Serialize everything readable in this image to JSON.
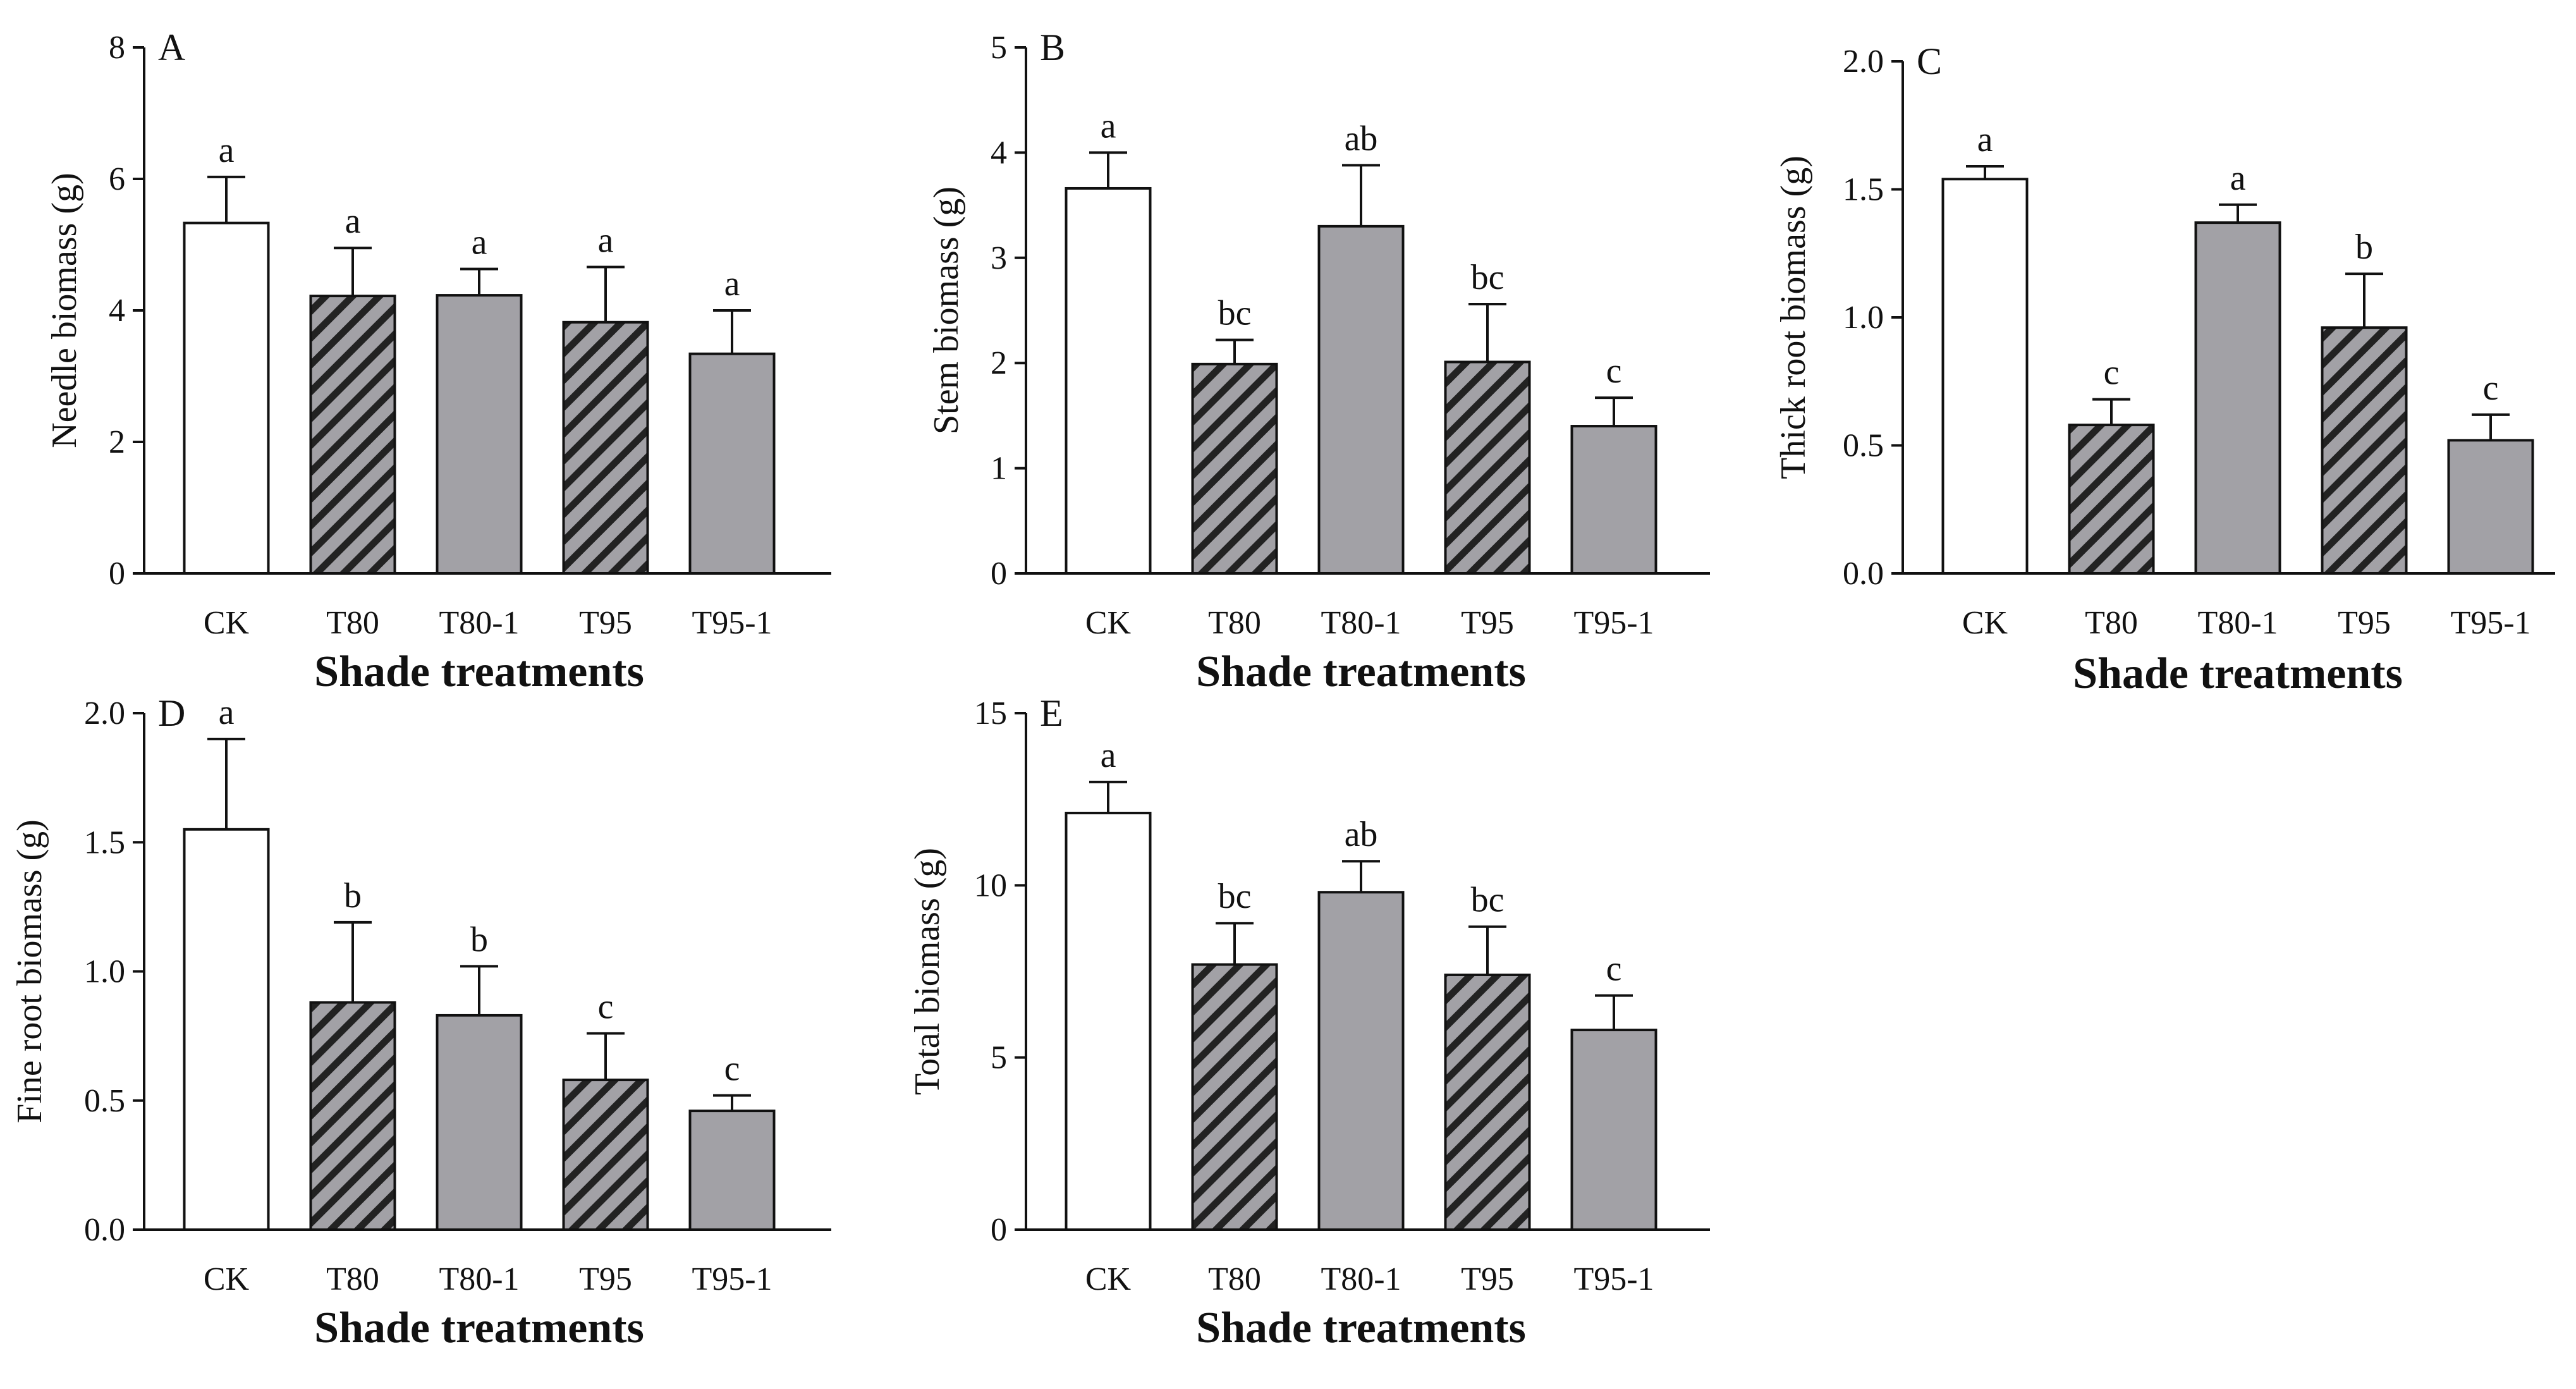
{
  "colors": {
    "open_bar": "#ffffff",
    "solid_bar": "#a2a1a6",
    "hatch_bg": "#a2a1a6",
    "hatch_line": "#222222",
    "axis": "#111111"
  },
  "chart_data": [
    {
      "panel": "A",
      "type": "bar",
      "categories": [
        "CK",
        "T80",
        "T80-1",
        "T95",
        "T95-1"
      ],
      "values": [
        5.33,
        4.22,
        4.23,
        3.82,
        3.34
      ],
      "errors": [
        0.7,
        0.73,
        0.4,
        0.84,
        0.66
      ],
      "significance": [
        "a",
        "a",
        "a",
        "a",
        "a"
      ],
      "fills": [
        "open",
        "hatched",
        "solid",
        "hatched",
        "solid"
      ],
      "ylabel": "Needle biomass (g)",
      "xlabel": "Shade treatments",
      "ylim": [
        0,
        8
      ],
      "yticks": [
        "0",
        "2",
        "4",
        "6",
        "8"
      ]
    },
    {
      "panel": "B",
      "type": "bar",
      "categories": [
        "CK",
        "T80",
        "T80-1",
        "T95",
        "T95-1"
      ],
      "values": [
        3.66,
        1.99,
        3.3,
        2.01,
        1.4
      ],
      "errors": [
        0.34,
        0.23,
        0.58,
        0.55,
        0.27
      ],
      "significance": [
        "a",
        "bc",
        "ab",
        "bc",
        "c"
      ],
      "fills": [
        "open",
        "hatched",
        "solid",
        "hatched",
        "solid"
      ],
      "ylabel": "Stem biomass (g)",
      "xlabel": "Shade treatments",
      "ylim": [
        0,
        5
      ],
      "yticks": [
        "0",
        "1",
        "2",
        "3",
        "4",
        "5"
      ]
    },
    {
      "panel": "C",
      "type": "bar",
      "categories": [
        "CK",
        "T80",
        "T80-1",
        "T95",
        "T95-1"
      ],
      "values": [
        1.54,
        0.58,
        1.37,
        0.96,
        0.52
      ],
      "errors": [
        0.05,
        0.1,
        0.07,
        0.21,
        0.1
      ],
      "significance": [
        "a",
        "c",
        "a",
        "b",
        "c"
      ],
      "fills": [
        "open",
        "hatched",
        "solid",
        "hatched",
        "solid"
      ],
      "ylabel": "Thick root biomass (g)",
      "xlabel": "Shade treatments",
      "ylim": [
        0,
        2
      ],
      "yticks": [
        "0.0",
        "0.5",
        "1.0",
        "1.5",
        "2.0"
      ]
    },
    {
      "panel": "D",
      "type": "bar",
      "categories": [
        "CK",
        "T80",
        "T80-1",
        "T95",
        "T95-1"
      ],
      "values": [
        1.55,
        0.88,
        0.83,
        0.58,
        0.46
      ],
      "errors": [
        0.35,
        0.31,
        0.19,
        0.18,
        0.06
      ],
      "significance": [
        "a",
        "b",
        "b",
        "c",
        "c"
      ],
      "fills": [
        "open",
        "hatched",
        "solid",
        "hatched",
        "solid"
      ],
      "ylabel": "Fine root biomass (g)",
      "xlabel": "Shade treatments",
      "ylim": [
        0,
        2
      ],
      "yticks": [
        "0.0",
        "0.5",
        "1.0",
        "1.5",
        "2.0"
      ]
    },
    {
      "panel": "E",
      "type": "bar",
      "categories": [
        "CK",
        "T80",
        "T80-1",
        "T95",
        "T95-1"
      ],
      "values": [
        12.1,
        7.7,
        9.8,
        7.4,
        5.8
      ],
      "errors": [
        0.9,
        1.2,
        0.9,
        1.4,
        1.0
      ],
      "significance": [
        "a",
        "bc",
        "ab",
        "bc",
        "c"
      ],
      "fills": [
        "open",
        "hatched",
        "solid",
        "hatched",
        "solid"
      ],
      "ylabel": "Total biomass (g)",
      "xlabel": "Shade treatments",
      "ylim": [
        0,
        15
      ],
      "yticks": [
        "0",
        "5",
        "10",
        "15"
      ]
    }
  ]
}
